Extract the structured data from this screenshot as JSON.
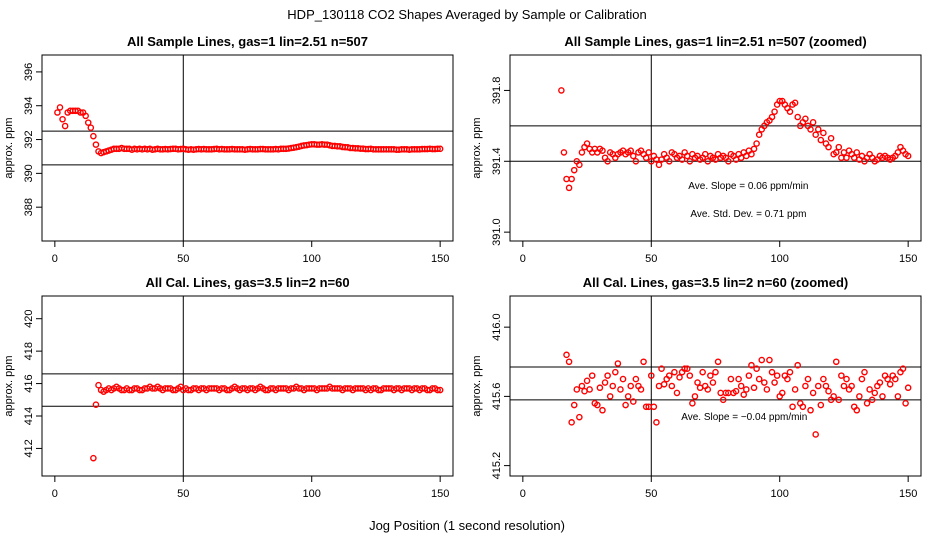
{
  "figure": {
    "title": "HDP_130118  CO2 Shapes Averaged by Sample or Calibration",
    "xlabel": "Jog Position (1 second resolution)"
  },
  "chart_data": [
    {
      "type": "scatter",
      "title": "All Sample Lines, gas=1 lin=2.51 n=507",
      "ylabel": "approx. ppm",
      "xlim": [
        -5,
        155
      ],
      "ylim": [
        386,
        397
      ],
      "xticks": [
        0,
        50,
        100,
        150
      ],
      "yticks": [
        388,
        390,
        392,
        394,
        396
      ],
      "xtick_labels": [
        "0",
        "50",
        "100",
        "150"
      ],
      "ytick_labels": [
        "388",
        "390",
        "392",
        "394",
        "396"
      ],
      "vline": 50,
      "hlines": [
        390.5,
        392.5
      ],
      "color": "#ff0000",
      "annotations": [],
      "x": [
        1,
        2,
        3,
        4,
        5,
        6,
        7,
        8,
        9,
        10,
        11,
        12,
        13,
        14,
        15,
        16,
        17,
        18,
        19,
        20,
        21,
        22,
        23,
        24,
        25,
        26,
        27,
        28,
        29,
        30,
        31,
        32,
        33,
        34,
        35,
        36,
        37,
        38,
        39,
        40,
        41,
        42,
        43,
        44,
        45,
        46,
        47,
        48,
        49,
        50,
        51,
        52,
        53,
        54,
        55,
        56,
        57,
        58,
        59,
        60,
        61,
        62,
        63,
        64,
        65,
        66,
        67,
        68,
        69,
        70,
        71,
        72,
        73,
        74,
        75,
        76,
        77,
        78,
        79,
        80,
        81,
        82,
        83,
        84,
        85,
        86,
        87,
        88,
        89,
        90,
        91,
        92,
        93,
        94,
        95,
        96,
        97,
        98,
        99,
        100,
        101,
        102,
        103,
        104,
        105,
        106,
        107,
        108,
        109,
        110,
        111,
        112,
        113,
        114,
        115,
        116,
        117,
        118,
        119,
        120,
        121,
        122,
        123,
        124,
        125,
        126,
        127,
        128,
        129,
        130,
        131,
        132,
        133,
        134,
        135,
        136,
        137,
        138,
        139,
        140,
        141,
        142,
        143,
        144,
        145,
        146,
        147,
        148,
        149,
        150
      ],
      "y": [
        393.6,
        393.9,
        393.2,
        392.8,
        393.6,
        393.7,
        393.7,
        393.7,
        393.7,
        393.6,
        393.6,
        393.4,
        393.0,
        392.7,
        392.2,
        391.7,
        391.3,
        391.2,
        391.25,
        391.3,
        391.35,
        391.4,
        391.45,
        391.45,
        391.45,
        391.5,
        391.45,
        391.45,
        391.45,
        391.4,
        391.45,
        391.42,
        391.45,
        391.42,
        391.45,
        391.42,
        391.45,
        391.4,
        391.42,
        391.45,
        391.42,
        391.42,
        391.44,
        391.42,
        391.44,
        391.45,
        391.45,
        391.42,
        391.44,
        391.45,
        391.42,
        391.4,
        391.42,
        391.4,
        391.42,
        391.44,
        391.42,
        391.44,
        391.42,
        391.42,
        391.42,
        391.44,
        391.45,
        391.42,
        391.44,
        391.42,
        391.42,
        391.42,
        391.44,
        391.42,
        391.42,
        391.42,
        391.42,
        391.4,
        391.42,
        391.44,
        391.42,
        391.42,
        391.42,
        391.44,
        391.44,
        391.42,
        391.42,
        391.42,
        391.42,
        391.44,
        391.42,
        391.45,
        391.45,
        391.45,
        391.47,
        391.5,
        391.52,
        391.55,
        391.58,
        391.62,
        391.65,
        391.67,
        391.7,
        391.72,
        391.72,
        391.7,
        391.7,
        391.72,
        391.7,
        391.7,
        391.66,
        391.62,
        391.62,
        391.6,
        391.6,
        391.56,
        391.55,
        391.54,
        391.5,
        391.5,
        391.48,
        391.48,
        391.46,
        391.46,
        391.44,
        391.44,
        391.45,
        391.42,
        391.42,
        391.42,
        391.42,
        391.42,
        391.42,
        391.42,
        391.42,
        391.42,
        391.4,
        391.4,
        391.42,
        391.42,
        391.42,
        391.4,
        391.42,
        391.42,
        391.42,
        391.42,
        391.44,
        391.44,
        391.44,
        391.45,
        391.44,
        391.44,
        391.45,
        391.45
      ]
    },
    {
      "type": "scatter",
      "title": "All Sample Lines, gas=1 lin=2.51 n=507 (zoomed)",
      "ylabel": "approx. ppm",
      "xlim": [
        -5,
        155
      ],
      "ylim": [
        390.95,
        392.0
      ],
      "xticks": [
        0,
        50,
        100,
        150
      ],
      "yticks": [
        391.0,
        391.4,
        391.8
      ],
      "xtick_labels": [
        "0",
        "50",
        "100",
        "150"
      ],
      "ytick_labels": [
        "391.0",
        "391.4",
        "391.8"
      ],
      "vline": 50,
      "hlines": [
        391.4,
        391.6
      ],
      "color": "#ff0000",
      "annotations": [
        "Ave. Slope =  0.06  ppm/min",
        "Ave. Std. Dev. =  0.71  ppm"
      ],
      "x": [
        15,
        16,
        17,
        18,
        19,
        20,
        21,
        22,
        23,
        24,
        25,
        26,
        27,
        28,
        29,
        30,
        31,
        32,
        33,
        34,
        35,
        36,
        37,
        38,
        39,
        40,
        41,
        42,
        43,
        44,
        45,
        46,
        47,
        48,
        49,
        50,
        51,
        52,
        53,
        54,
        55,
        56,
        57,
        58,
        59,
        60,
        61,
        62,
        63,
        64,
        65,
        66,
        67,
        68,
        69,
        70,
        71,
        72,
        73,
        74,
        75,
        76,
        77,
        78,
        79,
        80,
        81,
        82,
        83,
        84,
        85,
        86,
        87,
        88,
        89,
        90,
        91,
        92,
        93,
        94,
        95,
        96,
        97,
        98,
        99,
        100,
        101,
        102,
        103,
        104,
        105,
        106,
        107,
        108,
        109,
        110,
        111,
        112,
        113,
        114,
        115,
        116,
        117,
        118,
        119,
        120,
        121,
        122,
        123,
        124,
        125,
        126,
        127,
        128,
        129,
        130,
        131,
        132,
        133,
        134,
        135,
        136,
        137,
        138,
        139,
        140,
        141,
        142,
        143,
        144,
        145,
        146,
        147,
        148,
        149,
        150
      ],
      "y": [
        391.8,
        391.45,
        391.3,
        391.25,
        391.3,
        391.35,
        391.4,
        391.38,
        391.45,
        391.48,
        391.5,
        391.47,
        391.45,
        391.47,
        391.45,
        391.47,
        391.46,
        391.42,
        391.4,
        391.45,
        391.44,
        391.42,
        391.44,
        391.45,
        391.46,
        391.44,
        391.45,
        391.46,
        391.43,
        391.4,
        391.45,
        391.46,
        391.44,
        391.42,
        391.45,
        391.4,
        391.43,
        391.41,
        391.38,
        391.41,
        391.44,
        391.42,
        391.4,
        391.45,
        391.44,
        391.42,
        391.43,
        391.41,
        391.45,
        391.43,
        391.4,
        391.44,
        391.42,
        391.43,
        391.41,
        391.42,
        391.44,
        391.4,
        391.43,
        391.42,
        391.41,
        391.44,
        391.42,
        391.43,
        391.42,
        391.4,
        391.44,
        391.43,
        391.41,
        391.44,
        391.42,
        391.45,
        391.43,
        391.46,
        391.44,
        391.47,
        391.5,
        391.55,
        391.58,
        391.6,
        391.62,
        391.63,
        391.65,
        391.68,
        391.72,
        391.74,
        391.74,
        391.72,
        391.7,
        391.68,
        391.72,
        391.73,
        391.65,
        391.6,
        391.62,
        391.64,
        391.6,
        391.58,
        391.62,
        391.55,
        391.58,
        391.52,
        391.56,
        391.5,
        391.48,
        391.53,
        391.44,
        391.45,
        391.48,
        391.42,
        391.45,
        391.42,
        391.46,
        391.44,
        391.42,
        391.45,
        391.41,
        391.43,
        391.4,
        391.42,
        391.44,
        391.42,
        391.4,
        391.41,
        391.43,
        391.42,
        391.43,
        391.42,
        391.41,
        391.42,
        391.43,
        391.45,
        391.48,
        391.46,
        391.44,
        391.43
      ]
    },
    {
      "type": "scatter",
      "title": "All Cal. Lines, gas=3.5 lin=2 n=60",
      "ylabel": "approx. ppm",
      "xlim": [
        -5,
        155
      ],
      "ylim": [
        410.3,
        421.4
      ],
      "xticks": [
        0,
        50,
        100,
        150
      ],
      "yticks": [
        412,
        414,
        416,
        418,
        420
      ],
      "xtick_labels": [
        "0",
        "50",
        "100",
        "150"
      ],
      "ytick_labels": [
        "412",
        "414",
        "416",
        "418",
        "420"
      ],
      "vline": 50,
      "hlines": [
        414.6,
        416.6
      ],
      "color": "#ff0000",
      "annotations": [],
      "x": [
        15,
        16,
        17,
        18,
        19,
        20,
        21,
        22,
        23,
        24,
        25,
        26,
        27,
        28,
        29,
        30,
        31,
        32,
        33,
        34,
        35,
        36,
        37,
        38,
        39,
        40,
        41,
        42,
        43,
        44,
        45,
        46,
        47,
        48,
        49,
        50,
        51,
        52,
        53,
        54,
        55,
        56,
        57,
        58,
        59,
        60,
        61,
        62,
        63,
        64,
        65,
        66,
        67,
        68,
        69,
        70,
        71,
        72,
        73,
        74,
        75,
        76,
        77,
        78,
        79,
        80,
        81,
        82,
        83,
        84,
        85,
        86,
        87,
        88,
        89,
        90,
        91,
        92,
        93,
        94,
        95,
        96,
        97,
        98,
        99,
        100,
        101,
        102,
        103,
        104,
        105,
        106,
        107,
        108,
        109,
        110,
        111,
        112,
        113,
        114,
        115,
        116,
        117,
        118,
        119,
        120,
        121,
        122,
        123,
        124,
        125,
        126,
        127,
        128,
        129,
        130,
        131,
        132,
        133,
        134,
        135,
        136,
        137,
        138,
        139,
        140,
        141,
        142,
        143,
        144,
        145,
        146,
        147,
        148,
        149,
        150
      ],
      "y": [
        411.4,
        414.7,
        415.9,
        415.6,
        415.5,
        415.6,
        415.7,
        415.6,
        415.7,
        415.8,
        415.7,
        415.6,
        415.6,
        415.7,
        415.6,
        415.6,
        415.7,
        415.7,
        415.6,
        415.6,
        415.7,
        415.7,
        415.8,
        415.7,
        415.7,
        415.8,
        415.7,
        415.6,
        415.7,
        415.7,
        415.7,
        415.6,
        415.6,
        415.7,
        415.8,
        415.6,
        415.7,
        415.6,
        415.6,
        415.7,
        415.7,
        415.6,
        415.7,
        415.7,
        415.6,
        415.7,
        415.7,
        415.7,
        415.7,
        415.6,
        415.7,
        415.7,
        415.6,
        415.6,
        415.7,
        415.8,
        415.7,
        415.6,
        415.7,
        415.7,
        415.6,
        415.7,
        415.7,
        415.6,
        415.7,
        415.8,
        415.7,
        415.6,
        415.6,
        415.7,
        415.7,
        415.6,
        415.7,
        415.7,
        415.7,
        415.7,
        415.6,
        415.7,
        415.7,
        415.8,
        415.7,
        415.7,
        415.6,
        415.7,
        415.7,
        415.7,
        415.7,
        415.6,
        415.7,
        415.7,
        415.7,
        415.7,
        415.8,
        415.7,
        415.7,
        415.7,
        415.7,
        415.6,
        415.7,
        415.7,
        415.7,
        415.6,
        415.7,
        415.7,
        415.7,
        415.7,
        415.6,
        415.7,
        415.6,
        415.7,
        415.7,
        415.6,
        415.6,
        415.7,
        415.7,
        415.7,
        415.7,
        415.6,
        415.7,
        415.7,
        415.6,
        415.7,
        415.7,
        415.7,
        415.6,
        415.7,
        415.7,
        415.6,
        415.7,
        415.7,
        415.6,
        415.6,
        415.7,
        415.7,
        415.6,
        415.6
      ]
    },
    {
      "type": "scatter",
      "title": "All Cal. Lines, gas=3.5 lin=2 n=60 (zoomed)",
      "ylabel": "approx. ppm",
      "xlim": [
        -5,
        155
      ],
      "ylim": [
        415.14,
        416.18
      ],
      "xticks": [
        0,
        50,
        100,
        150
      ],
      "yticks": [
        415.2,
        415.6,
        416.0
      ],
      "xtick_labels": [
        "0",
        "50",
        "100",
        "150"
      ],
      "ytick_labels": [
        "415.2",
        "415.6",
        "416.0"
      ],
      "vline": 50,
      "hlines": [
        415.58,
        415.77
      ],
      "color": "#ff0000",
      "annotations": [
        "Ave. Slope =  −0.04  ppm/min"
      ],
      "x": [
        17,
        18,
        19,
        20,
        21,
        22,
        23,
        24,
        25,
        26,
        27,
        28,
        29,
        30,
        31,
        32,
        33,
        34,
        35,
        36,
        37,
        38,
        39,
        40,
        41,
        42,
        43,
        44,
        45,
        46,
        47,
        48,
        49,
        50,
        51,
        52,
        53,
        54,
        55,
        56,
        57,
        58,
        59,
        60,
        61,
        62,
        63,
        64,
        65,
        66,
        67,
        68,
        69,
        70,
        71,
        72,
        73,
        74,
        75,
        76,
        77,
        78,
        79,
        80,
        81,
        82,
        83,
        84,
        85,
        86,
        87,
        88,
        89,
        90,
        91,
        92,
        93,
        94,
        95,
        96,
        97,
        98,
        99,
        100,
        101,
        102,
        103,
        104,
        105,
        106,
        107,
        108,
        109,
        110,
        111,
        112,
        113,
        114,
        115,
        116,
        117,
        118,
        119,
        120,
        121,
        122,
        123,
        124,
        125,
        126,
        127,
        128,
        129,
        130,
        131,
        132,
        133,
        134,
        135,
        136,
        137,
        138,
        139,
        140,
        141,
        142,
        143,
        144,
        145,
        146,
        147,
        148,
        149,
        150
      ],
      "y": [
        415.84,
        415.8,
        415.45,
        415.55,
        415.64,
        415.48,
        415.66,
        415.63,
        415.69,
        415.64,
        415.72,
        415.56,
        415.55,
        415.65,
        415.52,
        415.68,
        415.72,
        415.6,
        415.66,
        415.74,
        415.79,
        415.64,
        415.7,
        415.55,
        415.6,
        415.66,
        415.57,
        415.7,
        415.66,
        415.64,
        415.8,
        415.54,
        415.54,
        415.72,
        415.54,
        415.45,
        415.66,
        415.76,
        415.67,
        415.7,
        415.72,
        415.66,
        415.74,
        415.62,
        415.71,
        415.74,
        415.76,
        415.76,
        415.72,
        415.56,
        415.6,
        415.68,
        415.65,
        415.74,
        415.66,
        415.64,
        415.72,
        415.68,
        415.74,
        415.8,
        415.62,
        415.58,
        415.62,
        415.62,
        415.7,
        415.62,
        415.63,
        415.7,
        415.66,
        415.61,
        415.64,
        415.72,
        415.78,
        415.65,
        415.76,
        415.7,
        415.81,
        415.68,
        415.64,
        415.81,
        415.74,
        415.68,
        415.72,
        415.6,
        415.62,
        415.72,
        415.7,
        415.74,
        415.54,
        415.64,
        415.78,
        415.56,
        415.54,
        415.66,
        415.7,
        415.52,
        415.62,
        415.38,
        415.66,
        415.55,
        415.7,
        415.66,
        415.63,
        415.58,
        415.6,
        415.8,
        415.58,
        415.72,
        415.66,
        415.7,
        415.64,
        415.66,
        415.54,
        415.52,
        415.6,
        415.7,
        415.74,
        415.56,
        415.64,
        415.58,
        415.62,
        415.66,
        415.68,
        415.6,
        415.72,
        415.7,
        415.67,
        415.72,
        415.7,
        415.6,
        415.74,
        415.76,
        415.56,
        415.65
      ]
    }
  ]
}
